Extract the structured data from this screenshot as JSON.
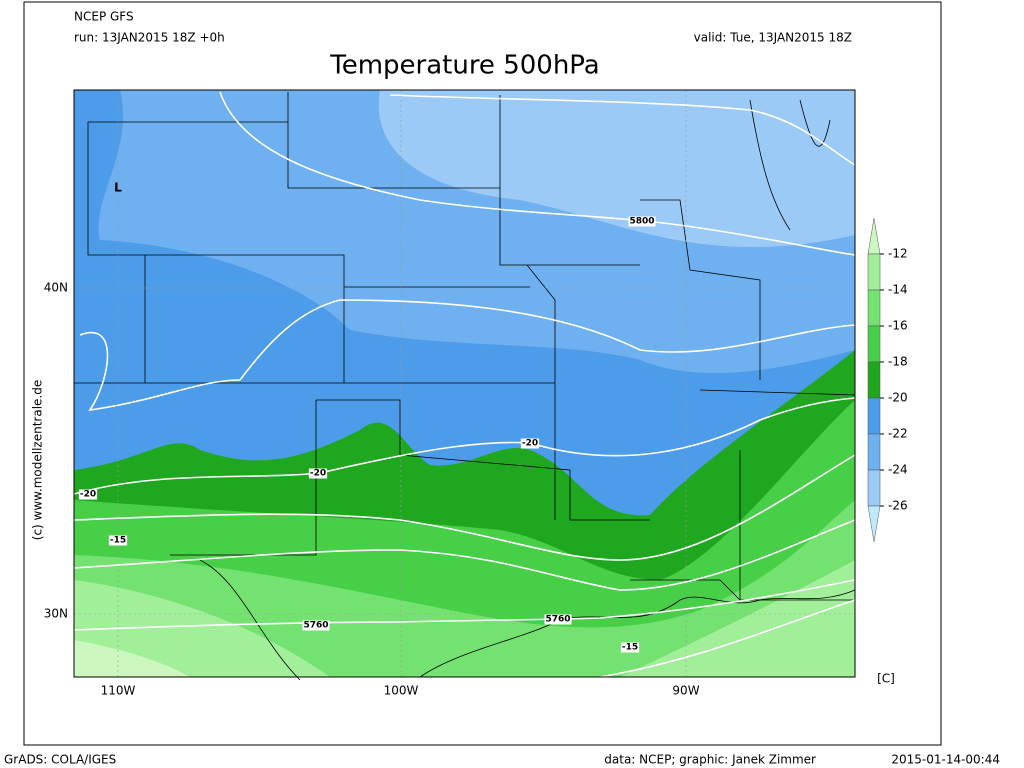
{
  "header": {
    "model": "NCEP GFS",
    "run": "run: 13JAN2015 18Z +0h",
    "valid": "valid: Tue, 13JAN2015 18Z",
    "title": "Temperature 500hPa"
  },
  "map": {
    "lat_labels": [
      "40N",
      "30N"
    ],
    "lon_labels": [
      "110W",
      "100W",
      "90W"
    ],
    "low_marker": "L",
    "contour_labels": [
      "5800",
      "-20",
      "-20",
      "-20",
      "-15",
      "5760",
      "5760",
      "-15"
    ]
  },
  "colorbar": {
    "labels": [
      -12,
      -14,
      -16,
      -18,
      -20,
      -22,
      -24,
      -26
    ],
    "unit": "[C]",
    "colors": [
      "#ccf8c0",
      "#a2ef9a",
      "#74e270",
      "#48cf48",
      "#1fa81f",
      "#4c9cea",
      "#6eb0f0",
      "#9ccaf6",
      "#c0eafc"
    ]
  },
  "side_credit": "(c) www.modellzentrale.de",
  "footer": {
    "left": "GrADS: COLA/IGES",
    "middle": "data: NCEP; graphic: Janek Zimmer",
    "right": "2015-01-14-00:44"
  }
}
